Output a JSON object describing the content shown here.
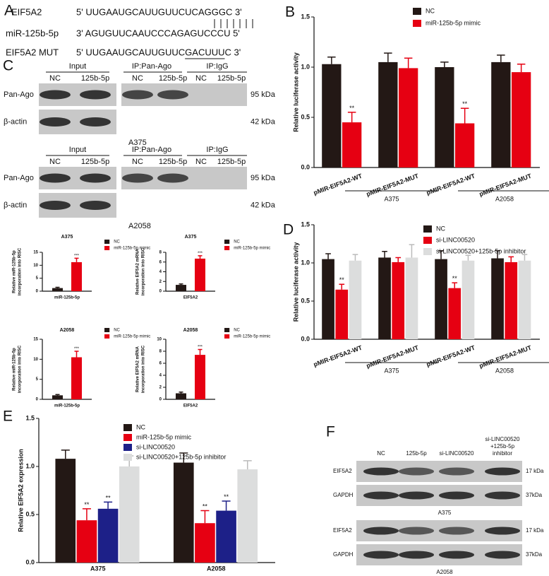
{
  "panels": [
    "A",
    "B",
    "C",
    "D",
    "E",
    "F"
  ],
  "sequences": [
    {
      "name": "EIF5A2",
      "text": "5' UUGAAUGCAUUGUUCUCAGGGC 3'"
    },
    {
      "name": "miR-125b-5p",
      "text": "3' AGUGUUCAAUCCCAGAGUCCCU 5'"
    },
    {
      "name": "EIF5A2 MUT",
      "parts": [
        "5' UUGAAUGCAUUGUUC",
        "GACUUU",
        "C 3'"
      ]
    }
  ],
  "blots_c": [
    {
      "cell": "A375",
      "headers": [
        "Input",
        "IP:Pan-Ago",
        "IP:IgG"
      ],
      "lanes": [
        "NC",
        "125b-5p",
        "NC",
        "125b-5p",
        "NC",
        "125b-5p"
      ],
      "rows": [
        {
          "name": "Pan-Ago",
          "size": "95 kDa"
        },
        {
          "name": "β-actin",
          "size": "42 kDa"
        }
      ]
    },
    {
      "cell": "A2058",
      "headers": [
        "Input",
        "IP:Pan-Ago",
        "IP:IgG"
      ],
      "lanes": [
        "NC",
        "125b-5p",
        "NC",
        "125b-5p",
        "NC",
        "125b-5p"
      ],
      "rows": [
        {
          "name": "Pan-Ago",
          "size": "95 kDa"
        },
        {
          "name": "β-actin",
          "size": "42 kDa"
        }
      ]
    }
  ],
  "blot_f": {
    "lanes": [
      "NC",
      "125b-5p",
      "si-LINC00520"
    ],
    "last_lane": [
      "si-LINC00520",
      "+125b-5p",
      "inhibitor"
    ],
    "blocks": [
      {
        "cell": "A375",
        "rows": [
          {
            "name": "EIF5A2",
            "size": "17 kDa"
          },
          {
            "name": "GAPDH",
            "size": "37kDa"
          }
        ]
      },
      {
        "cell": "A2058",
        "rows": [
          {
            "name": "EIF5A2",
            "size": "17 kDa"
          },
          {
            "name": "GAPDH",
            "size": "37kDa"
          }
        ]
      }
    ]
  },
  "chart_data": [
    {
      "type": "bar",
      "ylabel": "Relative luciferase activity",
      "categories": [
        "pMIR-EIF5A2-WT",
        "pMIR-EIF5A2-MUT",
        "pMIR-EIF5A2-WT",
        "pMIR-EIF5A2-MUT"
      ],
      "groups": [
        "A375",
        "A2058"
      ],
      "ylim": [
        0,
        1.5
      ],
      "yticks": [
        {
          "value": 0,
          "label": "0.0"
        },
        0.5,
        {
          "value": 1,
          "label": "1.0"
        },
        1.5
      ],
      "series": [
        {
          "name": "NC",
          "color": "#231815",
          "values": [
            1.03,
            1.05,
            1.0,
            1.05
          ],
          "errors": [
            0.07,
            0.09,
            0.05,
            0.07
          ]
        },
        {
          "name": "miR-125b-5p mimic",
          "color": "#e60012",
          "values": [
            0.45,
            0.99,
            0.44,
            0.95
          ],
          "errors": [
            0.1,
            0.1,
            0.15,
            0.08
          ],
          "significance": [
            "**",
            null,
            "**",
            null
          ]
        }
      ]
    },
    {
      "type": "bar",
      "ylabel": "Relative luciferase activity",
      "categories": [
        "pMIR-EIF5A2-WT",
        "pMIR-EIF5A2-MUT",
        "pMIR-EIF5A2-WT",
        "pMIR-EIF5A2-MUT"
      ],
      "groups": [
        "A375",
        "A2058"
      ],
      "ylim": [
        0,
        1.5
      ],
      "yticks": [
        {
          "value": 0,
          "label": "0.0"
        },
        0.5,
        {
          "value": 1,
          "label": "1.0"
        },
        1.5
      ],
      "series": [
        {
          "name": "NC",
          "color": "#231815",
          "values": [
            1.05,
            1.07,
            1.05,
            1.06
          ],
          "errors": [
            0.07,
            0.08,
            0.11,
            0.1
          ]
        },
        {
          "name": "si-LINC00520",
          "color": "#e60012",
          "values": [
            0.65,
            1.01,
            0.67,
            1.01
          ],
          "errors": [
            0.07,
            0.06,
            0.07,
            0.07
          ],
          "significance": [
            "**",
            null,
            "**",
            null
          ]
        },
        {
          "name": "si-LINC00520+125b-5p inhibitor",
          "color": "#dcdddd",
          "values": [
            1.03,
            1.07,
            1.03,
            1.03
          ],
          "errors": [
            0.08,
            0.17,
            0.07,
            0.08
          ]
        }
      ]
    },
    {
      "type": "bar",
      "ylabel": "Relative EIF5A2 expression",
      "categories": [
        "A375",
        "A2058"
      ],
      "ylim": [
        0,
        1.5
      ],
      "yticks": [
        {
          "value": 0,
          "label": "0.0"
        },
        0.5,
        {
          "value": 1,
          "label": "1.0"
        },
        1.5
      ],
      "series": [
        {
          "name": "NC",
          "color": "#231815",
          "values": [
            1.08,
            1.04
          ],
          "errors": [
            0.09,
            0.1
          ]
        },
        {
          "name": "miR-125b-5p mimic",
          "color": "#e60012",
          "values": [
            0.44,
            0.41
          ],
          "errors": [
            0.12,
            0.13
          ],
          "significance": [
            "**",
            "**"
          ]
        },
        {
          "name": "si-LINC00520",
          "color": "#1d2088",
          "values": [
            0.56,
            0.54
          ],
          "errors": [
            0.07,
            0.1
          ],
          "significance": [
            "**",
            "**"
          ]
        },
        {
          "name": "si-LINC00520+125b-5p inhibitor",
          "color": "#dcdddd",
          "values": [
            1.0,
            0.97
          ],
          "errors": [
            0.11,
            0.09
          ]
        }
      ]
    },
    {
      "type": "bar",
      "title": "A375",
      "ylabel": [
        "Relative miR-125b-5p",
        "incorporation into RISC"
      ],
      "categories": [
        "miR-125b-5p"
      ],
      "ylim": [
        0,
        15
      ],
      "yticks": [
        0,
        5,
        10,
        15
      ],
      "series": [
        {
          "name": "NC",
          "color": "#231815",
          "values": [
            1.2
          ],
          "errors": [
            0.3
          ]
        },
        {
          "name": "miR-125b-5p mimic",
          "color": "#e60012",
          "values": [
            11.2
          ],
          "errors": [
            1.5
          ],
          "significance": [
            "***"
          ]
        }
      ]
    },
    {
      "type": "bar",
      "title": "A375",
      "ylabel": [
        "Relative EIF5A2 mRNA",
        "incorporation into RISC"
      ],
      "categories": [
        "EIF5A2"
      ],
      "ylim": [
        0,
        8
      ],
      "yticks": [
        0,
        2,
        4,
        6,
        8
      ],
      "series": [
        {
          "name": "NC",
          "color": "#231815",
          "values": [
            1.3
          ],
          "errors": [
            0.2
          ]
        },
        {
          "name": "miR-125b-5p mimic",
          "color": "#e60012",
          "values": [
            6.7
          ],
          "errors": [
            0.6
          ],
          "significance": [
            "***"
          ]
        }
      ]
    },
    {
      "type": "bar",
      "title": "A2058",
      "ylabel": [
        "Relative miR-125b-5p",
        "incorporation into RISC"
      ],
      "categories": [
        "miR-125b-5p"
      ],
      "ylim": [
        0,
        15
      ],
      "yticks": [
        0,
        5,
        10,
        15
      ],
      "series": [
        {
          "name": "NC",
          "color": "#231815",
          "values": [
            1.0
          ],
          "errors": [
            0.2
          ]
        },
        {
          "name": "miR-125b-5p mimic",
          "color": "#e60012",
          "values": [
            10.5
          ],
          "errors": [
            1.5
          ],
          "significance": [
            "***"
          ]
        }
      ]
    },
    {
      "type": "bar",
      "title": "A2058",
      "ylabel": [
        "Relative EIF5A2 mRNA",
        "incorporation into RISC"
      ],
      "categories": [
        "EIF5A2"
      ],
      "ylim": [
        0,
        10
      ],
      "yticks": [
        0,
        2,
        4,
        6,
        8,
        10
      ],
      "series": [
        {
          "name": "NC",
          "color": "#231815",
          "values": [
            1.0
          ],
          "errors": [
            0.2
          ]
        },
        {
          "name": "miR-125b-5p mimic",
          "color": "#e60012",
          "values": [
            7.4
          ],
          "errors": [
            0.9
          ],
          "significance": [
            "***"
          ]
        }
      ]
    }
  ]
}
